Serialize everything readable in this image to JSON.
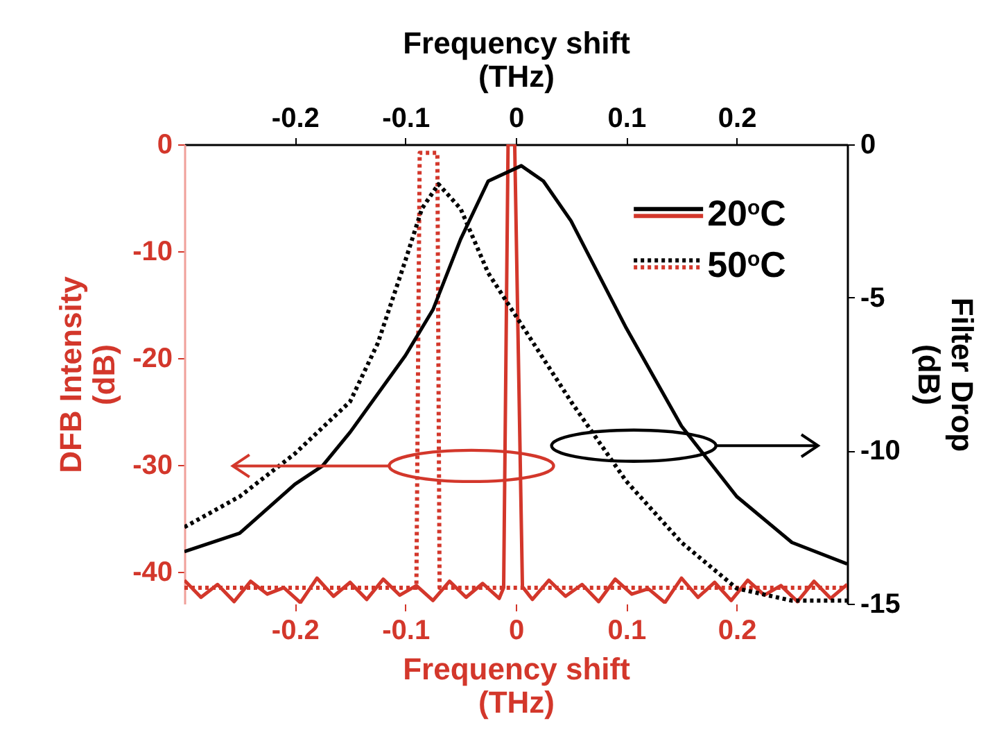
{
  "chart_data": {
    "type": "line",
    "xlabel": "Frequency shift\n(THz)",
    "x2label": "Frequency shift\n(THz)",
    "ylabel": "DFB Intensity\n(dB)",
    "y2label": "Filter Drop\n(dB)",
    "xlim": [
      -0.3,
      0.3
    ],
    "xticks": [
      -0.2,
      -0.1,
      0,
      0.1,
      0.2
    ],
    "x2lim": [
      -0.3,
      0.3
    ],
    "x2ticks": [
      -0.2,
      -0.1,
      0,
      0.1,
      0.2
    ],
    "ylim": [
      -43,
      0
    ],
    "yticks": [
      -40,
      -30,
      -20,
      -10,
      0
    ],
    "y2lim": [
      -15,
      0
    ],
    "y2ticks": [
      -15,
      -10,
      -5,
      0
    ],
    "legend": "top right",
    "series": [
      {
        "color": "#d3372b",
        "line_style": "solid",
        "x": [
          -0.3,
          -0.285,
          -0.27,
          -0.255,
          -0.24,
          -0.225,
          -0.21,
          -0.195,
          -0.18,
          -0.165,
          -0.15,
          -0.135,
          -0.12,
          -0.105,
          -0.09,
          -0.075,
          -0.06,
          -0.045,
          -0.03,
          -0.015,
          -0.011,
          -0.007,
          -0.001,
          0.006,
          0.015,
          0.03,
          0.045,
          0.06,
          0.075,
          0.09,
          0.105,
          0.12,
          0.135,
          0.15,
          0.165,
          0.18,
          0.195,
          0.21,
          0.225,
          0.24,
          0.255,
          0.27,
          0.285,
          0.3
        ],
        "values": [
          -40.8,
          -42.4,
          -41.2,
          -42.8,
          -40.9,
          -42.1,
          -41.5,
          -42.9,
          -40.6,
          -42.3,
          -41.0,
          -42.6,
          -40.7,
          -42.2,
          -41.3,
          -42.7,
          -40.9,
          -42.4,
          -41.1,
          -42.5,
          -41.5,
          0,
          0,
          -41.4,
          -42.6,
          -40.8,
          -42.3,
          -41.2,
          -42.8,
          -40.7,
          -42.1,
          -41.6,
          -42.9,
          -40.6,
          -42.4,
          -41.0,
          -42.7,
          -40.8,
          -42.2,
          -41.3,
          -42.8,
          -40.9,
          -42.5,
          -41.2
        ]
      },
      {
        "color": "#d3372b",
        "line_style": "dotted",
        "x": [
          -0.3,
          -0.09,
          -0.087,
          -0.071,
          -0.069,
          0.3
        ],
        "values": [
          -41.5,
          -41.5,
          -0.8,
          -0.8,
          -41.5,
          -41.5
        ]
      },
      {
        "name": "20$^{o}$C",
        "color": "#000000",
        "line_style": "solid",
        "axis": "y2",
        "x": [
          -0.3,
          -0.25,
          -0.2,
          -0.175,
          -0.15,
          -0.1,
          -0.075,
          -0.05,
          -0.025,
          0.005,
          0.025,
          0.05,
          0.1,
          0.15,
          0.2,
          0.25,
          0.3
        ],
        "values": [
          -13.3,
          -12.7,
          -11.1,
          -10.5,
          -9.4,
          -6.9,
          -5.4,
          -3.1,
          -1.2,
          -0.7,
          -1.2,
          -2.5,
          -6.0,
          -9.2,
          -11.5,
          -13.0,
          -13.7
        ]
      },
      {
        "name": "50$^{o}$C",
        "color": "#000000",
        "line_style": "dotted",
        "axis": "y2",
        "x": [
          -0.3,
          -0.25,
          -0.2,
          -0.15,
          -0.125,
          -0.1,
          -0.085,
          -0.07,
          -0.05,
          -0.025,
          0,
          0.05,
          0.1,
          0.15,
          0.2,
          0.25,
          0.3
        ],
        "values": [
          -12.5,
          -11.5,
          -10.1,
          -8.4,
          -6.5,
          -3.8,
          -2.1,
          -1.3,
          -2.1,
          -4.2,
          -5.6,
          -8.4,
          -11.0,
          -13.0,
          -14.5,
          -14.9,
          -14.9
        ]
      }
    ]
  }
}
